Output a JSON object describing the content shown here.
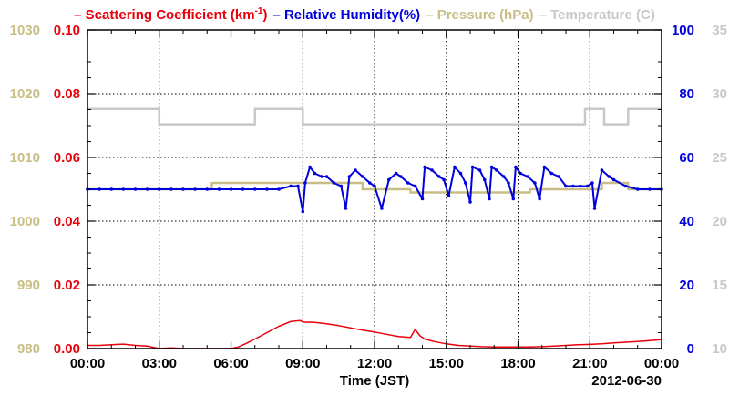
{
  "chart_data": {
    "type": "line",
    "legend": [
      {
        "dash": "–",
        "label": "Scattering Coefficient (km",
        "sup": "-1",
        "close": ")",
        "color": "#e8000b"
      },
      {
        "dash": "–",
        "label": "Relative Humidity(%)",
        "color": "#0000dd"
      },
      {
        "dash": "–",
        "label": "Pressure (hPa)",
        "color": "#c9bd86"
      },
      {
        "dash": "–",
        "label": "Temperature (C)",
        "color": "#c8c8c8"
      }
    ],
    "xlabel": "Time (JST)",
    "date_label": "2012-06-30",
    "x_ticks": [
      "00:00",
      "03:00",
      "06:00",
      "09:00",
      "12:00",
      "15:00",
      "18:00",
      "21:00",
      "00:00"
    ],
    "xlim_hours": [
      0,
      24
    ],
    "axes": {
      "pressure": {
        "ticks": [
          "1030",
          "1020",
          "1010",
          "1000",
          "990",
          "980"
        ],
        "range": [
          980,
          1030
        ],
        "color": "#c9bd86"
      },
      "scattering": {
        "ticks": [
          "0.10",
          "0.08",
          "0.06",
          "0.04",
          "0.02",
          "0.00"
        ],
        "range": [
          0,
          0.1
        ],
        "color": "#e8000b"
      },
      "humidity": {
        "ticks": [
          "100",
          "80",
          "60",
          "40",
          "20",
          "0"
        ],
        "range": [
          0,
          100
        ],
        "color": "#0000dd"
      },
      "temperature": {
        "ticks": [
          "35",
          "30",
          "25",
          "20",
          "15",
          "10"
        ],
        "range": [
          10,
          35
        ],
        "color": "#c8c8c8"
      }
    },
    "series": [
      {
        "name": "Temperature (C)",
        "axis": "temperature",
        "color": "#c8c8c8",
        "x": [
          0,
          3,
          3,
          7,
          7,
          9,
          9,
          20.8,
          20.8,
          21.6,
          21.6,
          22.6,
          22.6,
          24
        ],
        "y": [
          28.8,
          28.8,
          27.6,
          27.6,
          28.8,
          28.8,
          27.6,
          27.6,
          28.8,
          28.8,
          27.6,
          27.6,
          28.8,
          28.8
        ]
      },
      {
        "name": "Pressure (hPa)",
        "axis": "pressure",
        "color": "#c9bd86",
        "x": [
          0,
          5.2,
          5.2,
          11.5,
          11.5,
          13.5,
          13.5,
          18.5,
          18.5,
          21.5,
          21.5,
          22.6,
          22.6,
          24
        ],
        "y": [
          1005,
          1005,
          1006,
          1006,
          1005,
          1005,
          1004.5,
          1004.5,
          1005,
          1005,
          1006,
          1006,
          1005,
          1005
        ]
      },
      {
        "name": "Relative Humidity(%)",
        "axis": "humidity",
        "color": "#0000dd",
        "x": [
          0,
          0.5,
          1,
          1.5,
          2,
          2.5,
          3,
          3.5,
          4,
          4.5,
          5,
          5.5,
          6,
          6.5,
          7,
          7.5,
          8,
          8.5,
          8.8,
          9.0,
          9.1,
          9.3,
          9.5,
          9.8,
          10.0,
          10.3,
          10.6,
          10.8,
          10.95,
          11.2,
          11.5,
          11.8,
          12.0,
          12.3,
          12.6,
          12.9,
          13.1,
          13.4,
          13.7,
          14.0,
          14.1,
          14.4,
          14.7,
          14.9,
          15.1,
          15.35,
          15.6,
          15.8,
          16.0,
          16.1,
          16.4,
          16.6,
          16.8,
          16.9,
          17.1,
          17.4,
          17.6,
          17.8,
          17.9,
          18.1,
          18.4,
          18.7,
          18.9,
          19.1,
          19.4,
          19.7,
          20.0,
          20.3,
          20.6,
          20.9,
          21.1,
          21.2,
          21.5,
          21.8,
          22.0,
          22.5,
          23,
          23.5,
          24
        ],
        "y": [
          50,
          50,
          50,
          50,
          50,
          50,
          50,
          50,
          50,
          50,
          50,
          50,
          50,
          50,
          50,
          50,
          50,
          51,
          51,
          43,
          52,
          57,
          55,
          54,
          54,
          52,
          51,
          44,
          54,
          56,
          54,
          52,
          51,
          44,
          53,
          55,
          54,
          52,
          51,
          47,
          57,
          56,
          54,
          53,
          48,
          57,
          55,
          52,
          46,
          57,
          56,
          53,
          47,
          57,
          56,
          54,
          52,
          47,
          57,
          55,
          54,
          52,
          47,
          57,
          55,
          54,
          51,
          51,
          51,
          51,
          52,
          44,
          56,
          54,
          53,
          51,
          50,
          50,
          50
        ]
      },
      {
        "name": "Scattering Coefficient",
        "axis": "scattering",
        "color": "#e8000b",
        "x": [
          0,
          0.5,
          1,
          1.5,
          2,
          2.5,
          3,
          3.5,
          4,
          4.5,
          5,
          5.5,
          6,
          6.3,
          6.6,
          7.0,
          7.5,
          8.0,
          8.5,
          8.9,
          9.0,
          9.5,
          10.0,
          10.5,
          11.0,
          11.5,
          12.0,
          12.5,
          13.0,
          13.5,
          13.7,
          13.9,
          14.1,
          14.5,
          15.0,
          15.5,
          16.0,
          16.5,
          17,
          17.5,
          18,
          18.5,
          19,
          19.5,
          20,
          20.5,
          21,
          21.5,
          22,
          22.5,
          23,
          23.5,
          24
        ],
        "y": [
          0.001,
          0.001,
          0.0012,
          0.0014,
          0.001,
          0.0008,
          0.0,
          0.0002,
          0.0,
          0.0,
          0.0,
          0.0,
          0.0,
          0.0005,
          0.0015,
          0.003,
          0.005,
          0.007,
          0.0085,
          0.0088,
          0.0083,
          0.0082,
          0.0078,
          0.0072,
          0.0065,
          0.0058,
          0.0052,
          0.0045,
          0.0038,
          0.0035,
          0.006,
          0.004,
          0.003,
          0.0022,
          0.0015,
          0.001,
          0.0008,
          0.0006,
          0.0005,
          0.0005,
          0.0005,
          0.0005,
          0.0006,
          0.0008,
          0.001,
          0.0012,
          0.0013,
          0.0015,
          0.0018,
          0.002,
          0.0022,
          0.0025,
          0.0028
        ]
      }
    ]
  }
}
